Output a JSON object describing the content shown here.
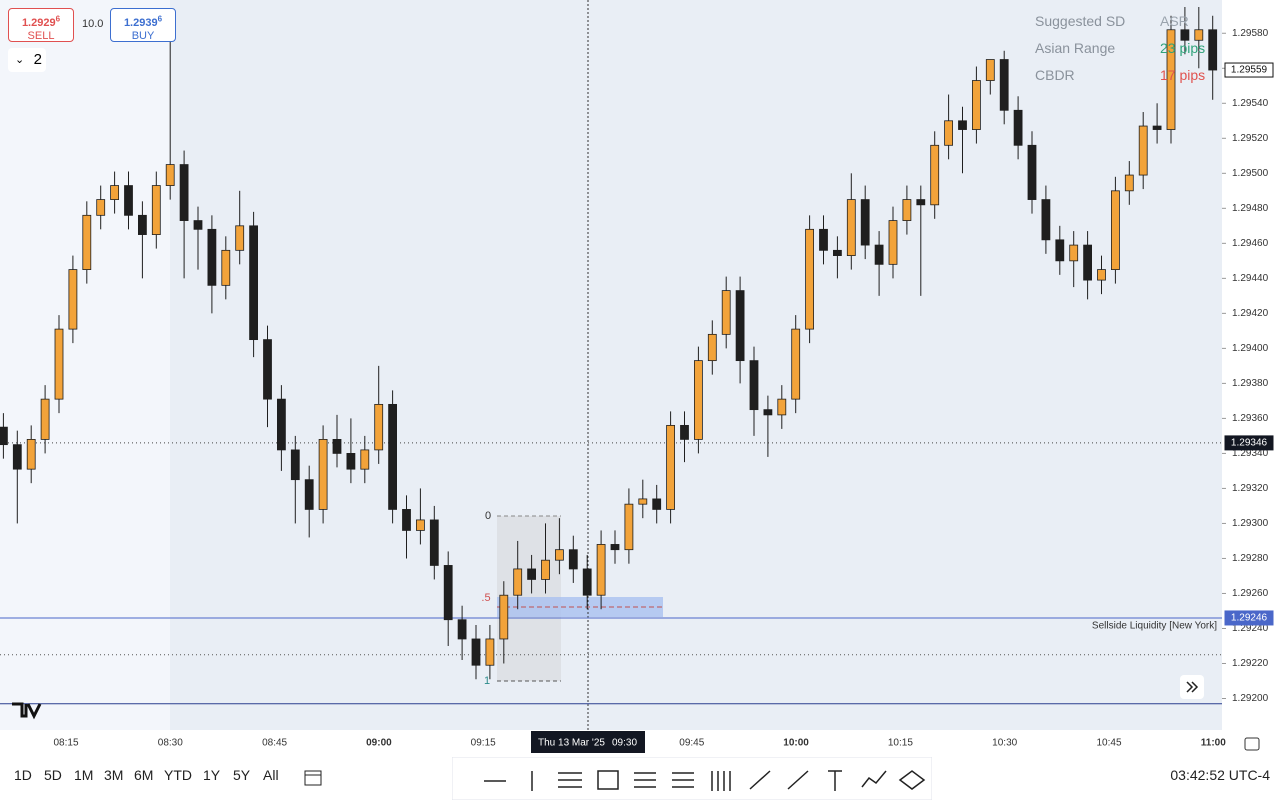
{
  "trade_panel": {
    "sell": {
      "price": "1.2929",
      "pip": "6",
      "label": "SELL"
    },
    "spread": "10.0",
    "buy": {
      "price": "1.2939",
      "pip": "6",
      "label": "BUY"
    }
  },
  "indicator_count": "2",
  "legend": [
    {
      "name": "Suggested SD",
      "value": "ASR",
      "color": "#9aa3ad"
    },
    {
      "name": "Asian Range",
      "value": "23 pips",
      "color": "#2fa37a"
    },
    {
      "name": "CBDR",
      "value": "17 pips",
      "color": "#e0524f"
    }
  ],
  "chart_data": {
    "type": "candlestick",
    "open": [
      1.29355,
      1.29345,
      1.29331,
      1.29348,
      1.29371,
      1.29411,
      1.29445,
      1.29476,
      1.29485,
      1.29493,
      1.29476,
      1.29465,
      1.29493,
      1.29505,
      1.29473,
      1.29468,
      1.29436,
      1.29456,
      1.2947,
      1.29405,
      1.29371,
      1.29342,
      1.29325,
      1.29308,
      1.29348,
      1.2934,
      1.29331,
      1.29342,
      1.29368,
      1.29308,
      1.29296,
      1.29302,
      1.29276,
      1.29245,
      1.29234,
      1.29219,
      1.29234,
      1.29259,
      1.29274,
      1.29268,
      1.29279,
      1.29285,
      1.29274,
      1.29259,
      1.29288,
      1.29285,
      1.29311,
      1.29314,
      1.29308,
      1.29356,
      1.29348,
      1.29393,
      1.29408,
      1.29433,
      1.29393,
      1.29365,
      1.29362,
      1.29371,
      1.29411,
      1.29468,
      1.29456,
      1.29453,
      1.29485,
      1.29459,
      1.29448,
      1.29473,
      1.29485,
      1.29482,
      1.29516,
      1.2953,
      1.29525,
      1.29553,
      1.29565,
      1.29536,
      1.29516,
      1.29485,
      1.29462,
      1.2945,
      1.29459,
      1.29439,
      1.29445,
      1.2949,
      1.29499,
      1.29527,
      1.29525,
      1.29582,
      1.29576,
      1.29582
    ],
    "high": [
      1.29363,
      1.29353,
      1.29356,
      1.29379,
      1.29419,
      1.29453,
      1.29484,
      1.29493,
      1.29501,
      1.29501,
      1.29484,
      1.29501,
      1.29576,
      1.29513,
      1.29481,
      1.29476,
      1.29464,
      1.2949,
      1.29478,
      1.29413,
      1.29379,
      1.2935,
      1.29333,
      1.29356,
      1.29362,
      1.2936,
      1.2935,
      1.2939,
      1.29376,
      1.29316,
      1.2932,
      1.2931,
      1.29284,
      1.29253,
      1.29242,
      1.29242,
      1.29267,
      1.2929,
      1.29282,
      1.293,
      1.29303,
      1.29293,
      1.29282,
      1.29296,
      1.29296,
      1.2932,
      1.29325,
      1.29322,
      1.29364,
      1.29364,
      1.29401,
      1.29416,
      1.29441,
      1.29441,
      1.29401,
      1.29373,
      1.29379,
      1.29419,
      1.29476,
      1.29476,
      1.29464,
      1.295,
      1.29493,
      1.29467,
      1.29481,
      1.29493,
      1.29493,
      1.29524,
      1.29545,
      1.29538,
      1.29561,
      1.29565,
      1.2957,
      1.29544,
      1.29524,
      1.29493,
      1.2947,
      1.29467,
      1.29467,
      1.29453,
      1.29498,
      1.29507,
      1.29535,
      1.2954,
      1.2959,
      1.29595,
      1.29595,
      1.2959
    ],
    "low": [
      1.29337,
      1.293,
      1.29323,
      1.2934,
      1.29363,
      1.29403,
      1.29437,
      1.29468,
      1.29477,
      1.29468,
      1.2944,
      1.29457,
      1.29485,
      1.2944,
      1.29445,
      1.2942,
      1.29428,
      1.29448,
      1.29395,
      1.29355,
      1.2933,
      1.293,
      1.29292,
      1.293,
      1.29332,
      1.29323,
      1.29323,
      1.29334,
      1.293,
      1.2928,
      1.29288,
      1.29268,
      1.2923,
      1.29222,
      1.29211,
      1.29211,
      1.2922,
      1.29251,
      1.2926,
      1.2926,
      1.29271,
      1.29266,
      1.29251,
      1.29251,
      1.29277,
      1.29277,
      1.29303,
      1.293,
      1.293,
      1.29335,
      1.2934,
      1.29385,
      1.294,
      1.2938,
      1.2935,
      1.29338,
      1.29354,
      1.29363,
      1.29403,
      1.29448,
      1.2944,
      1.29445,
      1.29451,
      1.2943,
      1.2944,
      1.29465,
      1.2943,
      1.29474,
      1.29508,
      1.295,
      1.29517,
      1.29545,
      1.29528,
      1.29508,
      1.29477,
      1.29454,
      1.29442,
      1.29435,
      1.29428,
      1.29431,
      1.29437,
      1.29482,
      1.29491,
      1.29517,
      1.29517,
      1.29568,
      1.2956,
      1.29542
    ],
    "close": [
      1.29345,
      1.29331,
      1.29348,
      1.29371,
      1.29411,
      1.29445,
      1.29476,
      1.29485,
      1.29493,
      1.29476,
      1.29465,
      1.29493,
      1.29505,
      1.29473,
      1.29468,
      1.29436,
      1.29456,
      1.2947,
      1.29405,
      1.29371,
      1.29342,
      1.29325,
      1.29308,
      1.29348,
      1.2934,
      1.29331,
      1.29342,
      1.29368,
      1.29308,
      1.29296,
      1.29302,
      1.29276,
      1.29245,
      1.29234,
      1.29219,
      1.29234,
      1.29259,
      1.29274,
      1.29268,
      1.29279,
      1.29285,
      1.29274,
      1.29259,
      1.29288,
      1.29285,
      1.29311,
      1.29314,
      1.29308,
      1.29356,
      1.29348,
      1.29393,
      1.29408,
      1.29433,
      1.29393,
      1.29365,
      1.29362,
      1.29371,
      1.29411,
      1.29468,
      1.29456,
      1.29453,
      1.29485,
      1.29459,
      1.29448,
      1.29473,
      1.29485,
      1.29482,
      1.29516,
      1.2953,
      1.29525,
      1.29553,
      1.29565,
      1.29536,
      1.29516,
      1.29485,
      1.29462,
      1.2945,
      1.29459,
      1.29439,
      1.29445,
      1.2949,
      1.29499,
      1.29527,
      1.29525,
      1.29582,
      1.29576,
      1.29582,
      1.29559
    ],
    "up_color": "#f2a33a",
    "down_color": "#1f1f1f",
    "ylim": [
      1.29182,
      1.29599
    ],
    "yticks": [
      {
        "value": 1.2958,
        "label": "1.29580"
      },
      {
        "value": 1.2956,
        "label": "1.29560"
      },
      {
        "value": 1.2954,
        "label": "1.29540"
      },
      {
        "value": 1.2952,
        "label": "1.29520"
      },
      {
        "value": 1.295,
        "label": "1.29500"
      },
      {
        "value": 1.2948,
        "label": "1.29480"
      },
      {
        "value": 1.2946,
        "label": "1.29460"
      },
      {
        "value": 1.2944,
        "label": "1.29440"
      },
      {
        "value": 1.2942,
        "label": "1.29420"
      },
      {
        "value": 1.294,
        "label": "1.29400"
      },
      {
        "value": 1.2938,
        "label": "1.29380"
      },
      {
        "value": 1.2936,
        "label": "1.29360"
      },
      {
        "value": 1.2934,
        "label": "1.29340"
      },
      {
        "value": 1.2932,
        "label": "1.29320"
      },
      {
        "value": 1.293,
        "label": "1.29300"
      },
      {
        "value": 1.2928,
        "label": "1.29280"
      },
      {
        "value": 1.2926,
        "label": "1.29260"
      },
      {
        "value": 1.2924,
        "label": "1.29240"
      },
      {
        "value": 1.2922,
        "label": "1.29220"
      },
      {
        "value": 1.292,
        "label": "1.29200"
      }
    ],
    "x_labels": [
      "08:15",
      "08:30",
      "08:45",
      "09:00",
      "09:15",
      "09:30",
      "09:45",
      "10:00",
      "10:15",
      "10:30",
      "10:45",
      "11:00"
    ],
    "crosshair_date": "Thu 13 Mar '25",
    "crosshair_time": "09:30",
    "lines": [
      {
        "value": 1.29346,
        "style": "dotted",
        "color": "#444444"
      },
      {
        "value": 1.29246,
        "style": "solid",
        "color": "#4a67c9"
      },
      {
        "value": 1.29225,
        "style": "dotted",
        "color": "#555555"
      },
      {
        "value": 1.29197,
        "style": "solid",
        "color": "#2b3f8f"
      }
    ],
    "price_markers": [
      {
        "value": 1.29559,
        "style": "outline"
      },
      {
        "value": 1.29346,
        "style": "dark"
      },
      {
        "value": 1.29246,
        "style": "blue"
      }
    ],
    "annotation": "Sellside Liquidity [New York]",
    "fib_labels": [
      "0",
      ".5",
      "1"
    ]
  },
  "ranges": [
    "1D",
    "5D",
    "1M",
    "3M",
    "6M",
    "YTD",
    "1Y",
    "5Y",
    "All"
  ],
  "clock": "03:42:52 UTC-4"
}
